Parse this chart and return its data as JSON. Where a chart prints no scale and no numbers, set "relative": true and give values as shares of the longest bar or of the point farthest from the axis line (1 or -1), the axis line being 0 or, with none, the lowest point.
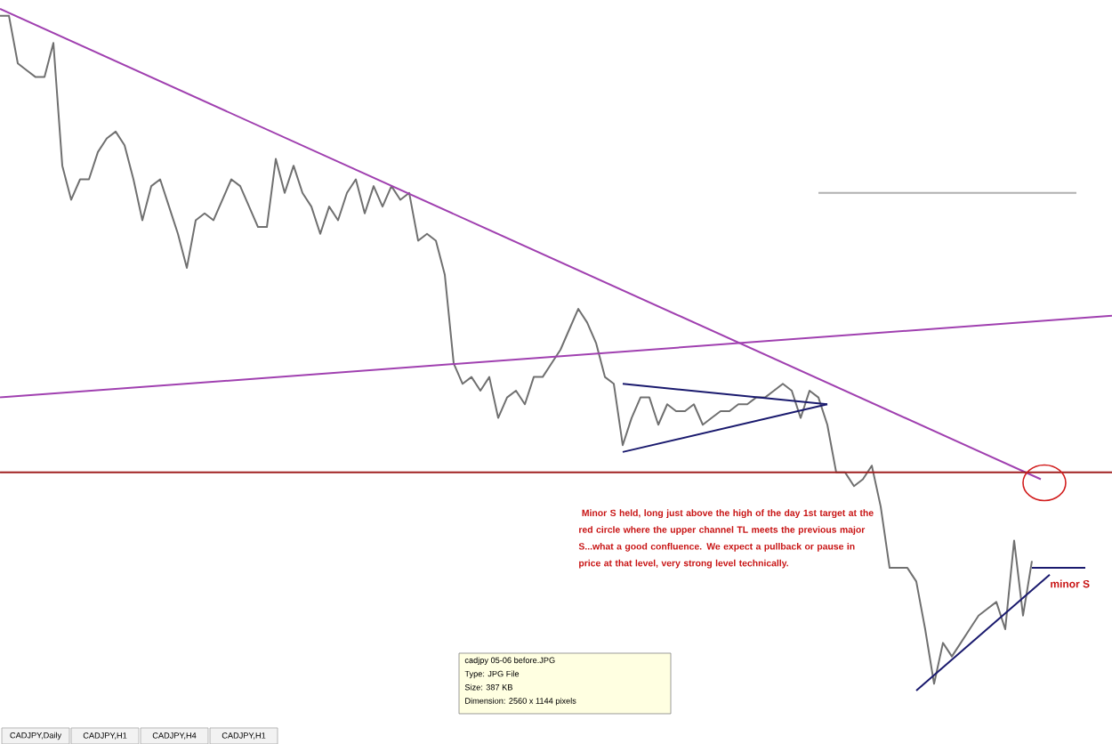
{
  "chart_data": {
    "type": "line",
    "relative": true,
    "tick_labels": false,
    "line_style": "solid",
    "marker": "none",
    "categories": [
      null,
      null,
      null,
      null,
      null,
      null,
      null,
      null,
      null,
      null,
      null,
      null,
      null,
      null,
      null,
      null,
      null,
      null,
      null,
      null,
      null,
      null,
      null,
      null,
      null,
      null,
      null,
      null,
      null,
      null,
      null,
      null,
      null,
      null,
      null,
      null,
      null,
      null,
      null,
      null,
      null,
      null,
      null,
      null,
      null,
      null,
      null,
      null,
      null,
      null,
      null,
      null,
      null,
      null,
      null,
      null,
      null,
      null,
      null,
      null,
      null,
      null,
      null,
      null,
      null,
      null,
      null,
      null,
      null,
      null,
      null,
      null,
      null,
      null,
      null,
      null,
      null,
      null,
      null,
      null,
      null,
      null,
      null,
      null,
      null,
      null,
      null,
      null,
      null,
      null,
      null,
      null,
      null,
      null,
      null,
      null,
      null,
      null,
      null,
      null,
      null,
      null,
      null,
      null,
      null,
      null,
      null,
      null,
      null,
      null,
      null,
      null,
      null,
      null,
      null,
      null,
      null,
      null,
      null,
      null,
      null,
      null,
      null,
      null,
      null,
      null
    ],
    "series": [
      {
        "color": "#707070",
        "values": [
          0.99,
          0.99,
          0.92,
          0.91,
          0.9,
          0.9,
          0.95,
          0.77,
          0.72,
          0.75,
          0.75,
          0.79,
          0.81,
          0.82,
          0.8,
          0.75,
          0.69,
          0.74,
          0.75,
          0.71,
          0.67,
          0.62,
          0.69,
          0.7,
          0.69,
          0.72,
          0.75,
          0.74,
          0.71,
          0.68,
          0.68,
          0.78,
          0.73,
          0.77,
          0.73,
          0.71,
          0.67,
          0.71,
          0.69,
          0.73,
          0.75,
          0.7,
          0.74,
          0.71,
          0.74,
          0.72,
          0.73,
          0.66,
          0.67,
          0.66,
          0.61,
          0.48,
          0.45,
          0.46,
          0.44,
          0.46,
          0.4,
          0.43,
          0.44,
          0.42,
          0.46,
          0.46,
          0.48,
          0.5,
          0.53,
          0.56,
          0.54,
          0.51,
          0.46,
          0.45,
          0.36,
          0.4,
          0.43,
          0.43,
          0.39,
          0.42,
          0.41,
          0.41,
          0.42,
          0.39,
          0.4,
          0.41,
          0.41,
          0.42,
          0.42,
          0.43,
          0.43,
          0.44,
          0.45,
          0.44,
          0.4,
          0.44,
          0.43,
          0.39,
          0.32,
          0.32,
          0.3,
          0.31,
          0.33,
          0.27,
          0.18,
          0.18,
          0.18,
          0.16,
          0.09,
          0.01,
          0.07,
          0.05,
          0.07,
          0.09,
          0.11,
          0.12,
          0.13,
          0.09,
          0.22,
          0.11,
          0.19,
          null,
          null,
          null,
          null,
          null,
          null,
          null,
          null,
          null
        ]
      },
      {
        "color": "#a040b0",
        "values": [
          1.0,
          null,
          null,
          null,
          null,
          null,
          null,
          null,
          null,
          null,
          null,
          null,
          null,
          null,
          null,
          null,
          null,
          null,
          null,
          null,
          null,
          null,
          null,
          null,
          null,
          null,
          null,
          null,
          null,
          null,
          null,
          null,
          null,
          null,
          null,
          null,
          null,
          null,
          null,
          null,
          null,
          null,
          null,
          null,
          null,
          null,
          null,
          null,
          null,
          null,
          null,
          null,
          null,
          null,
          null,
          null,
          null,
          null,
          null,
          null,
          null,
          null,
          null,
          null,
          null,
          null,
          null,
          null,
          null,
          null,
          null,
          null,
          null,
          null,
          null,
          null,
          null,
          null,
          null,
          null,
          null,
          null,
          null,
          null,
          null,
          null,
          null,
          null,
          null,
          null,
          null,
          null,
          null,
          null,
          null,
          null,
          null,
          null,
          null,
          null,
          null,
          null,
          null,
          null,
          null,
          null,
          null,
          null,
          null,
          null,
          null,
          null,
          null,
          null,
          null,
          null,
          null,
          0.31,
          null,
          null,
          null,
          null,
          null,
          null,
          null,
          null
        ]
      },
      {
        "color": "#a040b0",
        "values": [
          0.43,
          null,
          null,
          null,
          null,
          null,
          null,
          null,
          null,
          null,
          null,
          null,
          null,
          null,
          null,
          null,
          null,
          null,
          null,
          null,
          null,
          null,
          null,
          null,
          null,
          null,
          null,
          null,
          null,
          null,
          null,
          null,
          null,
          null,
          null,
          null,
          null,
          null,
          null,
          null,
          null,
          null,
          null,
          null,
          null,
          null,
          null,
          null,
          null,
          null,
          null,
          null,
          null,
          null,
          null,
          null,
          null,
          null,
          null,
          null,
          null,
          null,
          null,
          null,
          null,
          null,
          null,
          null,
          null,
          null,
          null,
          null,
          null,
          null,
          null,
          null,
          null,
          null,
          null,
          null,
          null,
          null,
          null,
          null,
          null,
          null,
          null,
          null,
          null,
          null,
          null,
          null,
          null,
          null,
          null,
          null,
          null,
          null,
          null,
          null,
          null,
          null,
          null,
          null,
          null,
          null,
          null,
          null,
          null,
          null,
          null,
          null,
          null,
          null,
          null,
          null,
          null,
          null,
          null,
          null,
          null,
          null,
          null,
          null,
          null,
          0.55
        ]
      },
      {
        "color": "#a02020",
        "values": [
          0.32,
          null,
          null,
          null,
          null,
          null,
          null,
          null,
          null,
          null,
          null,
          null,
          null,
          null,
          null,
          null,
          null,
          null,
          null,
          null,
          null,
          null,
          null,
          null,
          null,
          null,
          null,
          null,
          null,
          null,
          null,
          null,
          null,
          null,
          null,
          null,
          null,
          null,
          null,
          null,
          null,
          null,
          null,
          null,
          null,
          null,
          null,
          null,
          null,
          null,
          null,
          null,
          null,
          null,
          null,
          null,
          null,
          null,
          null,
          null,
          null,
          null,
          null,
          null,
          null,
          null,
          null,
          null,
          null,
          null,
          null,
          null,
          null,
          null,
          null,
          null,
          null,
          null,
          null,
          null,
          null,
          null,
          null,
          null,
          null,
          null,
          null,
          null,
          null,
          null,
          null,
          null,
          null,
          null,
          null,
          null,
          null,
          null,
          null,
          null,
          null,
          null,
          null,
          null,
          null,
          null,
          null,
          null,
          null,
          null,
          null,
          null,
          null,
          null,
          null,
          null,
          null,
          null,
          null,
          null,
          null,
          null,
          null,
          null,
          null,
          0.32
        ]
      },
      {
        "color": "#1a1a6e",
        "values": [
          null,
          null,
          null,
          null,
          null,
          null,
          null,
          null,
          null,
          null,
          null,
          null,
          null,
          null,
          null,
          null,
          null,
          null,
          null,
          null,
          null,
          null,
          null,
          null,
          null,
          null,
          null,
          null,
          null,
          null,
          null,
          null,
          null,
          null,
          null,
          null,
          null,
          null,
          null,
          null,
          null,
          null,
          null,
          null,
          null,
          null,
          null,
          null,
          null,
          null,
          null,
          null,
          null,
          null,
          null,
          null,
          null,
          null,
          null,
          null,
          null,
          null,
          null,
          null,
          null,
          null,
          null,
          null,
          null,
          null,
          0.45,
          null,
          null,
          null,
          null,
          null,
          null,
          null,
          null,
          null,
          null,
          null,
          null,
          null,
          null,
          null,
          null,
          null,
          null,
          null,
          null,
          null,
          null,
          0.42,
          null,
          null,
          null,
          null,
          null,
          null,
          null,
          null,
          null,
          null,
          null,
          null,
          null,
          null,
          null,
          null,
          null,
          null,
          null,
          null,
          null,
          null,
          null,
          null,
          null,
          null,
          null,
          null,
          null,
          null,
          null,
          null
        ]
      },
      {
        "color": "#1a1a6e",
        "values": [
          null,
          null,
          null,
          null,
          null,
          null,
          null,
          null,
          null,
          null,
          null,
          null,
          null,
          null,
          null,
          null,
          null,
          null,
          null,
          null,
          null,
          null,
          null,
          null,
          null,
          null,
          null,
          null,
          null,
          null,
          null,
          null,
          null,
          null,
          null,
          null,
          null,
          null,
          null,
          null,
          null,
          null,
          null,
          null,
          null,
          null,
          null,
          null,
          null,
          null,
          null,
          null,
          null,
          null,
          null,
          null,
          null,
          null,
          null,
          null,
          null,
          null,
          null,
          null,
          null,
          null,
          null,
          null,
          null,
          null,
          0.35,
          null,
          null,
          null,
          null,
          null,
          null,
          null,
          null,
          null,
          null,
          null,
          null,
          null,
          null,
          null,
          null,
          null,
          null,
          null,
          null,
          null,
          null,
          0.42,
          null,
          null,
          null,
          null,
          null,
          null,
          null,
          null,
          null,
          null,
          null,
          null,
          null,
          null,
          null,
          null,
          null,
          null,
          null,
          null,
          null,
          null,
          null,
          null,
          null,
          null,
          null,
          null,
          null,
          null,
          null,
          null
        ]
      },
      {
        "color": "#1a1a6e",
        "values": [
          null,
          null,
          null,
          null,
          null,
          null,
          null,
          null,
          null,
          null,
          null,
          null,
          null,
          null,
          null,
          null,
          null,
          null,
          null,
          null,
          null,
          null,
          null,
          null,
          null,
          null,
          null,
          null,
          null,
          null,
          null,
          null,
          null,
          null,
          null,
          null,
          null,
          null,
          null,
          null,
          null,
          null,
          null,
          null,
          null,
          null,
          null,
          null,
          null,
          null,
          null,
          null,
          null,
          null,
          null,
          null,
          null,
          null,
          null,
          null,
          null,
          null,
          null,
          null,
          null,
          null,
          null,
          null,
          null,
          null,
          null,
          null,
          null,
          null,
          null,
          null,
          null,
          null,
          null,
          null,
          null,
          null,
          null,
          null,
          null,
          null,
          null,
          null,
          null,
          null,
          null,
          null,
          null,
          null,
          null,
          null,
          null,
          null,
          null,
          null,
          null,
          null,
          null,
          0.0,
          null,
          null,
          null,
          null,
          null,
          null,
          null,
          null,
          null,
          null,
          null,
          null,
          null,
          null,
          0.17,
          null,
          null,
          null,
          null,
          null,
          null,
          null
        ]
      },
      {
        "color": "#1a1a6e",
        "values": [
          null,
          null,
          null,
          null,
          null,
          null,
          null,
          null,
          null,
          null,
          null,
          null,
          null,
          null,
          null,
          null,
          null,
          null,
          null,
          null,
          null,
          null,
          null,
          null,
          null,
          null,
          null,
          null,
          null,
          null,
          null,
          null,
          null,
          null,
          null,
          null,
          null,
          null,
          null,
          null,
          null,
          null,
          null,
          null,
          null,
          null,
          null,
          null,
          null,
          null,
          null,
          null,
          null,
          null,
          null,
          null,
          null,
          null,
          null,
          null,
          null,
          null,
          null,
          null,
          null,
          null,
          null,
          null,
          null,
          null,
          null,
          null,
          null,
          null,
          null,
          null,
          null,
          null,
          null,
          null,
          null,
          null,
          null,
          null,
          null,
          null,
          null,
          null,
          null,
          null,
          null,
          null,
          null,
          null,
          null,
          null,
          null,
          null,
          null,
          null,
          null,
          null,
          null,
          null,
          null,
          null,
          null,
          null,
          null,
          null,
          null,
          null,
          null,
          null,
          null,
          null,
          0.18,
          null,
          null,
          null,
          null,
          null,
          0.18,
          null,
          null,
          null
        ]
      },
      {
        "color": "#b0b0b0",
        "values": [
          null,
          null,
          null,
          null,
          null,
          null,
          null,
          null,
          null,
          null,
          null,
          null,
          null,
          null,
          null,
          null,
          null,
          null,
          null,
          null,
          null,
          null,
          null,
          null,
          null,
          null,
          null,
          null,
          null,
          null,
          null,
          null,
          null,
          null,
          null,
          null,
          null,
          null,
          null,
          null,
          null,
          null,
          null,
          null,
          null,
          null,
          null,
          null,
          null,
          null,
          null,
          null,
          null,
          null,
          null,
          null,
          null,
          null,
          null,
          null,
          null,
          null,
          null,
          null,
          null,
          null,
          null,
          null,
          null,
          null,
          null,
          null,
          null,
          null,
          null,
          null,
          null,
          null,
          null,
          null,
          null,
          null,
          null,
          null,
          null,
          null,
          null,
          null,
          null,
          null,
          null,
          null,
          0.73,
          null,
          null,
          null,
          null,
          null,
          null,
          null,
          null,
          null,
          null,
          null,
          null,
          null,
          null,
          null,
          null,
          null,
          null,
          null,
          null,
          null,
          null,
          null,
          null,
          null,
          null,
          null,
          null,
          0.73,
          null,
          null,
          null,
          null
        ]
      }
    ],
    "annotations": [
      " Minor S held, long just above the high of the day 1st target at the red circle where the upper channel TL meets the previous major S...what a good confluence. We expect a pullback or pause in price at that level, very strong level technically.",
      "cadjpy 05-06 before.JPG",
      "Type: JPG File",
      "Size: 387 KB",
      "Dimension: 2560 x 1144 pixels",
      "CADJPY,Daily",
      "CADJPY,H1",
      "CADJPY,H4",
      "CADJPY,H1",
      "minor S"
    ]
  }
}
